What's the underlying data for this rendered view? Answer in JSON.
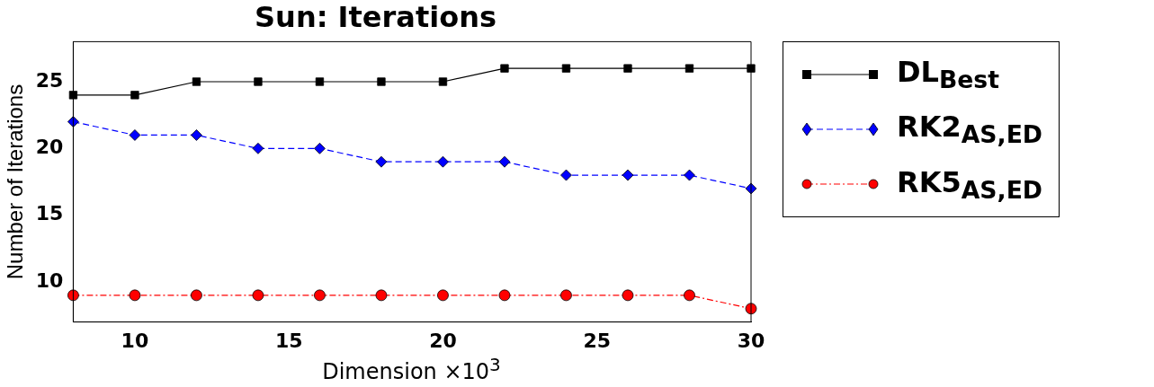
{
  "chart_data": {
    "type": "line",
    "title": "Sun: Iterations",
    "xlabel": "Dimension ×10$^{3}$",
    "ylabel": "Number of Iterations",
    "x": [
      8,
      10,
      12,
      14,
      16,
      18,
      20,
      22,
      24,
      26,
      28,
      30
    ],
    "series": [
      {
        "name": "DL$_{Best}$",
        "color": "#000000",
        "marker": "square",
        "line_style": "solid",
        "values": [
          24,
          24,
          25,
          25,
          25,
          25,
          25,
          26,
          26,
          26,
          26,
          26
        ]
      },
      {
        "name": "RK2$_{AS,ED}$",
        "color": "#0000ff",
        "marker": "diamond",
        "line_style": "dashed",
        "values": [
          22,
          21,
          21,
          20,
          20,
          19,
          19,
          19,
          18,
          18,
          18,
          17
        ]
      },
      {
        "name": "RK5$_{AS,ED}$",
        "color": "#ff0000",
        "marker": "circle",
        "line_style": "dashdot",
        "values": [
          9,
          9,
          9,
          9,
          9,
          9,
          9,
          9,
          9,
          9,
          9,
          8
        ]
      }
    ],
    "xlim": [
      8,
      30
    ],
    "xticks": [
      10,
      15,
      20,
      25,
      30
    ],
    "ylim": [
      7,
      28
    ],
    "yticks": [
      10,
      15,
      20,
      25
    ],
    "grid": false,
    "legend": "right"
  }
}
